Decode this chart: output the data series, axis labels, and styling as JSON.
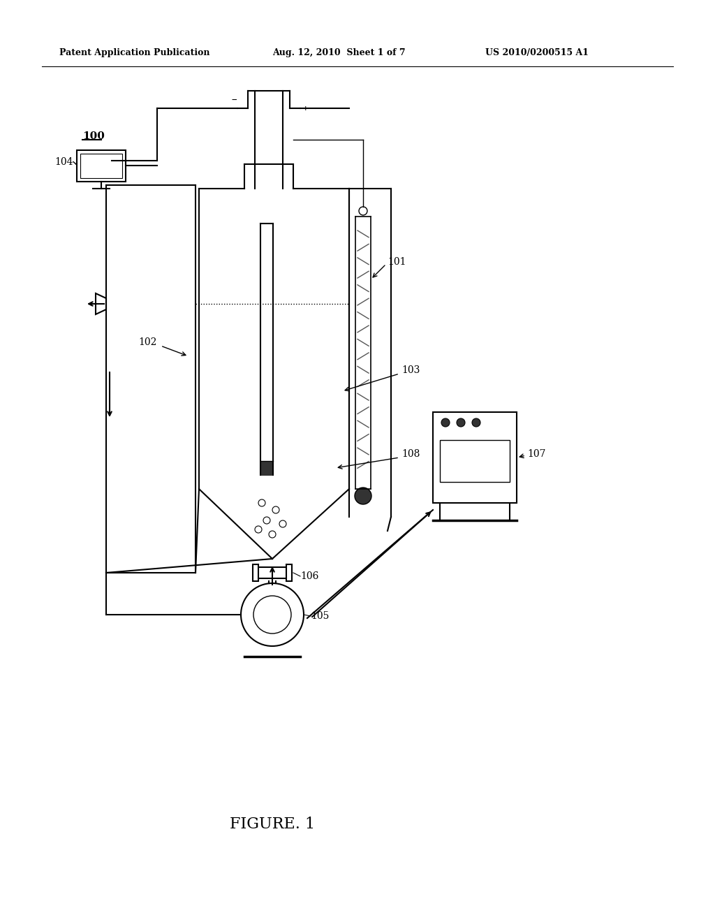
{
  "bg_color": "#ffffff",
  "line_color": "#000000",
  "header_left": "Patent Application Publication",
  "header_center": "Aug. 12, 2010  Sheet 1 of 7",
  "header_right": "US 2010/0200515 A1",
  "figure_label": "FIGURE. 1",
  "label_100": "100",
  "label_101": "101",
  "label_102": "102",
  "label_103": "103",
  "label_104": "104",
  "label_105": "105",
  "label_106": "106",
  "label_107": "107",
  "label_108": "108"
}
